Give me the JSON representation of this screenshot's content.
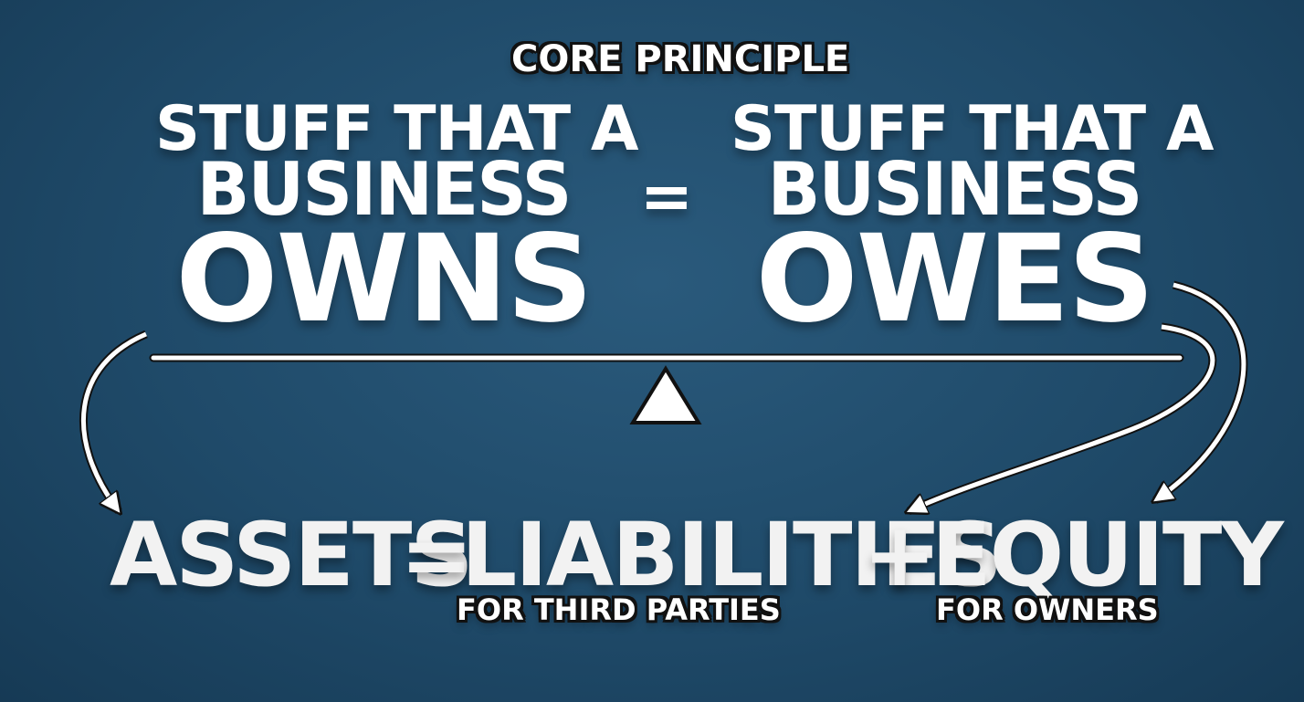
{
  "title": "CORE PRINCIPLE",
  "left": {
    "line1": "STUFF THAT A",
    "line2": "BUSINESS",
    "line3": "OWNS"
  },
  "equals_top": "=",
  "right": {
    "line1": "STUFF THAT A",
    "line2": "BUSINESS",
    "line3": "OWES"
  },
  "equation": {
    "assets": "ASSETS",
    "equals": "=",
    "liabilities": "LIABILITIES",
    "plus": "+",
    "equity": "EQUITY",
    "liabilities_sub": "FOR THIRD PARTIES",
    "equity_sub": "FOR OWNERS"
  },
  "colors": {
    "background": "#1f4a69",
    "text": "#ffffff",
    "outline": "#111111"
  },
  "icons": [
    "balance-beam",
    "fulcrum-triangle",
    "curved-arrow"
  ]
}
